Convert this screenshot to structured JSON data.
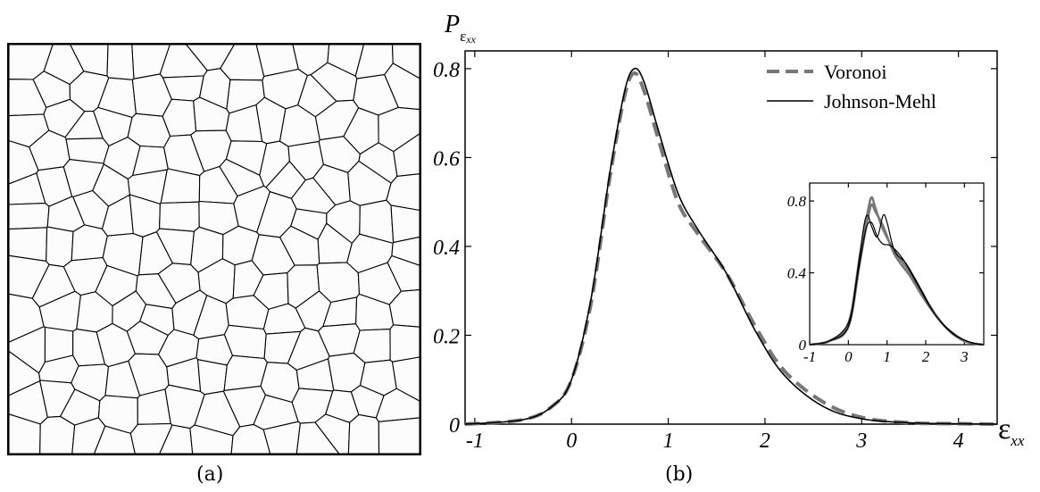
{
  "panels": {
    "a_label": "(a)",
    "b_label": "(b)"
  },
  "chart_data": [
    {
      "type": "line",
      "panel": "b",
      "title": "",
      "xlabel": "ε_xx",
      "ylabel": "P_ε_xx",
      "xlabel_main": "ε",
      "xlabel_sub": "xx",
      "ylabel_main": "P",
      "ylabel_sub_main": "ε",
      "ylabel_sub_sub": "xx",
      "xlim": [
        -1.1,
        4.4
      ],
      "ylim": [
        0,
        0.84
      ],
      "xticks": [
        -1,
        0,
        1,
        2,
        3,
        4
      ],
      "yticks": [
        0,
        0.2,
        0.4,
        0.6,
        0.8
      ],
      "xtick_labels": [
        "-1",
        "0",
        "1",
        "2",
        "3",
        "4"
      ],
      "ytick_labels": [
        "0",
        "0.2",
        "0.4",
        "0.6",
        "0.8"
      ],
      "legend_position": "top-right",
      "series": [
        {
          "name": "Voronoi",
          "color": "#777777",
          "style": "dashed",
          "x": [
            -1.1,
            -0.5,
            -0.2,
            0,
            0.2,
            0.4,
            0.55,
            0.65,
            0.75,
            0.9,
            1.1,
            1.3,
            1.6,
            1.9,
            2.2,
            2.6,
            3.0,
            3.5,
            4.0,
            4.4
          ],
          "y": [
            0,
            0.01,
            0.04,
            0.1,
            0.27,
            0.56,
            0.74,
            0.79,
            0.75,
            0.64,
            0.5,
            0.43,
            0.34,
            0.22,
            0.12,
            0.05,
            0.015,
            0.003,
            0.001,
            0
          ]
        },
        {
          "name": "Johnson-Mehl",
          "color": "#000000",
          "style": "solid",
          "x": [
            -1.1,
            -0.5,
            -0.2,
            0,
            0.2,
            0.4,
            0.55,
            0.65,
            0.75,
            0.9,
            1.1,
            1.3,
            1.6,
            1.9,
            2.2,
            2.6,
            3.0,
            3.5,
            4.0,
            4.4
          ],
          "y": [
            0,
            0.01,
            0.04,
            0.1,
            0.28,
            0.57,
            0.75,
            0.8,
            0.77,
            0.66,
            0.52,
            0.44,
            0.34,
            0.21,
            0.11,
            0.04,
            0.012,
            0.003,
            0.001,
            0
          ]
        }
      ]
    },
    {
      "type": "line",
      "panel": "b-inset",
      "title": "",
      "xlabel": "",
      "ylabel": "",
      "xlim": [
        -1,
        3.5
      ],
      "ylim": [
        0,
        0.9
      ],
      "xticks": [
        -1,
        0,
        1,
        2,
        3
      ],
      "yticks": [
        0,
        0.4,
        0.8
      ],
      "xtick_labels": [
        "-1",
        "0",
        "1",
        "2",
        "3"
      ],
      "ytick_labels": [
        "0",
        "0.4",
        "0.8"
      ],
      "series": [
        {
          "color": "#777777",
          "style": "solid",
          "x": [
            -1,
            -0.5,
            0,
            0.3,
            0.5,
            0.6,
            0.7,
            0.9,
            1.2,
            1.6,
            2.0,
            2.5,
            3.0,
            3.5
          ],
          "y": [
            0,
            0.02,
            0.12,
            0.5,
            0.74,
            0.82,
            0.76,
            0.64,
            0.52,
            0.4,
            0.25,
            0.1,
            0.02,
            0
          ]
        },
        {
          "color": "#777777",
          "style": "solid",
          "x": [
            -1,
            -0.5,
            0,
            0.3,
            0.5,
            0.6,
            0.7,
            0.9,
            1.2,
            1.6,
            2.0,
            2.5,
            3.0,
            3.5
          ],
          "y": [
            0,
            0.02,
            0.1,
            0.46,
            0.7,
            0.78,
            0.74,
            0.66,
            0.5,
            0.38,
            0.24,
            0.1,
            0.02,
            0
          ]
        },
        {
          "color": "#000000",
          "style": "solid",
          "x": [
            -1,
            -0.5,
            0,
            0.2,
            0.4,
            0.5,
            0.6,
            0.75,
            0.9,
            1.0,
            1.2,
            1.5,
            1.9,
            2.3,
            2.8,
            3.2,
            3.5
          ],
          "y": [
            0,
            0.02,
            0.12,
            0.35,
            0.66,
            0.72,
            0.66,
            0.6,
            0.72,
            0.68,
            0.52,
            0.45,
            0.3,
            0.15,
            0.05,
            0.01,
            0
          ]
        },
        {
          "color": "#000000",
          "style": "solid",
          "x": [
            -1,
            -0.5,
            0,
            0.25,
            0.45,
            0.6,
            0.75,
            0.9,
            1.1,
            1.4,
            1.8,
            2.2,
            2.7,
            3.2,
            3.5
          ],
          "y": [
            0,
            0.02,
            0.1,
            0.4,
            0.64,
            0.68,
            0.6,
            0.56,
            0.55,
            0.48,
            0.33,
            0.18,
            0.06,
            0.01,
            0
          ]
        }
      ]
    }
  ]
}
